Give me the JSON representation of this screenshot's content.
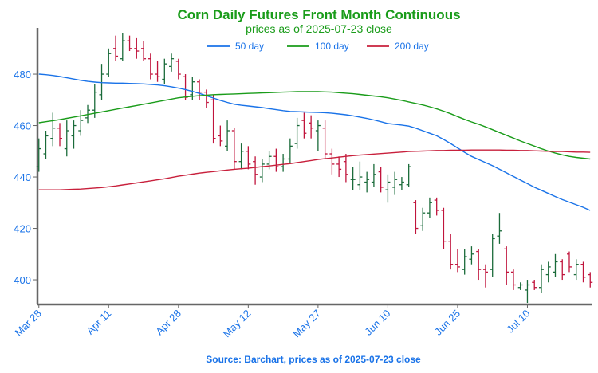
{
  "chart_data": {
    "type": "ohlc",
    "title": "Corn Daily Futures Front Month Continuous",
    "subtitle": "prices as of 2025-07-23 close",
    "source": "Source: Barchart, prices as of 2025-07-23 close",
    "categories": [
      "Mar 28",
      null,
      null,
      null,
      null,
      null,
      null,
      null,
      null,
      null,
      "Apr 11",
      null,
      null,
      null,
      null,
      null,
      null,
      null,
      null,
      null,
      "Apr 28",
      null,
      null,
      null,
      null,
      null,
      null,
      null,
      null,
      null,
      "May 12",
      null,
      null,
      null,
      null,
      null,
      null,
      null,
      null,
      null,
      "May 27",
      null,
      null,
      null,
      null,
      null,
      null,
      null,
      null,
      null,
      "Jun 10",
      null,
      null,
      null,
      null,
      null,
      null,
      null,
      null,
      null,
      "Jun 25",
      null,
      null,
      null,
      null,
      null,
      null,
      null,
      null,
      null,
      "Jul 10",
      null,
      null,
      null,
      null,
      null,
      null,
      null,
      null,
      null
    ],
    "ohlc": {
      "up_color": "#1a6b3a",
      "down_color": "#c0143c",
      "open": [
        444,
        449,
        455,
        459,
        451,
        456,
        458,
        463,
        466,
        472,
        480,
        490,
        486,
        493,
        490,
        490,
        486,
        480,
        478,
        483,
        485,
        479,
        472,
        477,
        473,
        470,
        456,
        452,
        458,
        446,
        450,
        446,
        440,
        445,
        448,
        444,
        447,
        453,
        462,
        461,
        458,
        459,
        449,
        445,
        446,
        439,
        437,
        438,
        438,
        442,
        435,
        436,
        437,
        437,
        430,
        421,
        426,
        431,
        427,
        415,
        406,
        404,
        408,
        411,
        404,
        404,
        417,
        412,
        403,
        397,
        396,
        399,
        397,
        402,
        403,
        407,
        410,
        402,
        406,
        402
      ],
      "high": [
        455,
        458,
        465,
        461,
        462,
        462,
        466,
        468,
        476,
        484,
        490,
        495,
        496,
        495,
        494,
        493,
        488,
        485,
        486,
        488,
        486,
        480,
        479,
        478,
        474,
        472,
        460,
        462,
        459,
        453,
        452,
        448,
        447,
        450,
        451,
        449,
        455,
        463,
        465,
        464,
        462,
        462,
        451,
        448,
        449,
        444,
        446,
        442,
        445,
        444,
        441,
        442,
        440,
        445,
        431,
        428,
        432,
        432,
        428,
        418,
        412,
        412,
        413,
        412,
        406,
        418,
        426,
        413,
        404,
        399,
        400,
        400,
        406,
        407,
        410,
        408,
        411,
        408,
        407,
        403
      ],
      "low": [
        442,
        447,
        452,
        452,
        448,
        451,
        456,
        461,
        463,
        470,
        479,
        485,
        485,
        489,
        486,
        485,
        478,
        477,
        476,
        481,
        478,
        470,
        470,
        470,
        467,
        453,
        452,
        450,
        443,
        443,
        443,
        437,
        438,
        443,
        442,
        442,
        445,
        451,
        455,
        455,
        450,
        447,
        441,
        440,
        438,
        435,
        435,
        434,
        436,
        434,
        430,
        433,
        435,
        436,
        418,
        419,
        424,
        425,
        412,
        404,
        403,
        402,
        406,
        400,
        397,
        401,
        414,
        398,
        396,
        396,
        391,
        396,
        395,
        399,
        401,
        400,
        403,
        400,
        399,
        397
      ],
      "close": [
        451,
        456,
        459,
        455,
        458,
        460,
        462,
        466,
        473,
        480,
        488,
        487,
        493,
        490,
        489,
        486,
        480,
        479,
        484,
        486,
        480,
        471,
        477,
        473,
        469,
        455,
        454,
        458,
        446,
        450,
        445,
        441,
        445,
        448,
        444,
        447,
        452,
        460,
        457,
        459,
        460,
        449,
        445,
        443,
        441,
        439,
        440,
        439,
        441,
        436,
        438,
        439,
        438,
        444,
        420,
        426,
        430,
        427,
        415,
        406,
        405,
        409,
        410,
        404,
        403,
        416,
        419,
        403,
        398,
        398,
        398,
        397,
        404,
        405,
        407,
        402,
        405,
        406,
        401,
        399
      ]
    },
    "series": [
      {
        "name": "50 day",
        "color": "#1a73e8",
        "values": [
          480,
          479.8,
          479.5,
          479.1,
          478.6,
          478.1,
          477.6,
          477.2,
          476.9,
          476.7,
          476.6,
          476.5,
          476.5,
          476.4,
          476.3,
          476.2,
          476,
          475.8,
          475.5,
          475.1,
          474.6,
          474,
          473.3,
          472.5,
          471.6,
          470.7,
          469.8,
          469,
          468.3,
          467.9,
          467.6,
          467.3,
          467,
          466.6,
          466.2,
          465.8,
          465.5,
          465.4,
          465.3,
          465.2,
          465.1,
          465,
          464.8,
          464.5,
          464.2,
          463.8,
          463.3,
          462.8,
          462.2,
          461.5,
          460.8,
          460.5,
          460.2,
          459.8,
          459,
          458,
          457,
          456,
          454.6,
          453,
          451.3,
          449.6,
          448,
          446.8,
          445.6,
          444.4,
          443,
          441.6,
          440.2,
          438.8,
          437.4,
          436,
          434.8,
          433.6,
          432.4,
          431.2,
          430.2,
          429.2,
          428.2,
          427
        ]
      },
      {
        "name": "100 day",
        "color": "#1a9c1a",
        "values": [
          461.1,
          461.5,
          461.9,
          462.3,
          462.8,
          463.3,
          463.8,
          464.3,
          464.8,
          465.3,
          465.8,
          466.3,
          466.8,
          467.3,
          467.8,
          468.3,
          468.8,
          469.3,
          469.8,
          470.3,
          470.8,
          471.1,
          471.4,
          471.6,
          471.8,
          472,
          472.1,
          472.2,
          472.3,
          472.4,
          472.5,
          472.6,
          472.7,
          472.8,
          472.9,
          473,
          473.1,
          473.2,
          473.2,
          473.2,
          473.2,
          473.1,
          473,
          472.8,
          472.6,
          472.4,
          472.1,
          471.8,
          471.5,
          471.2,
          470.8,
          470.3,
          469.8,
          469.2,
          468.6,
          468,
          467.3,
          466.5,
          465.6,
          464.6,
          463.5,
          462.4,
          461.4,
          460.5,
          459.5,
          458.4,
          457.3,
          456.2,
          455.1,
          454,
          453,
          452,
          451,
          450.1,
          449.3,
          448.6,
          448,
          447.6,
          447.3,
          447
        ]
      },
      {
        "name": "200 day",
        "color": "#c8203c",
        "values": [
          435,
          435,
          435,
          435,
          435.1,
          435.2,
          435.3,
          435.5,
          435.7,
          435.9,
          436.2,
          436.5,
          436.9,
          437.3,
          437.7,
          438.1,
          438.5,
          438.9,
          439.3,
          439.8,
          440.3,
          440.7,
          441.1,
          441.5,
          441.8,
          442.1,
          442.4,
          442.7,
          443,
          443.2,
          443.4,
          443.7,
          444,
          444.3,
          444.6,
          444.9,
          445.2,
          445.6,
          446,
          446.4,
          446.8,
          447.1,
          447.4,
          447.7,
          448,
          448.3,
          448.5,
          448.7,
          448.9,
          449.1,
          449.3,
          449.5,
          449.7,
          449.9,
          450,
          450.1,
          450.2,
          450.3,
          450.3,
          450.4,
          450.4,
          450.4,
          450.5,
          450.5,
          450.5,
          450.5,
          450.5,
          450.4,
          450.4,
          450.3,
          450.3,
          450.2,
          450.1,
          450,
          449.9,
          449.9,
          449.8,
          449.7,
          449.7,
          449.6
        ]
      }
    ],
    "ylim": [
      390.4,
      498
    ],
    "yticks": [
      400,
      420,
      440,
      460,
      480
    ]
  }
}
